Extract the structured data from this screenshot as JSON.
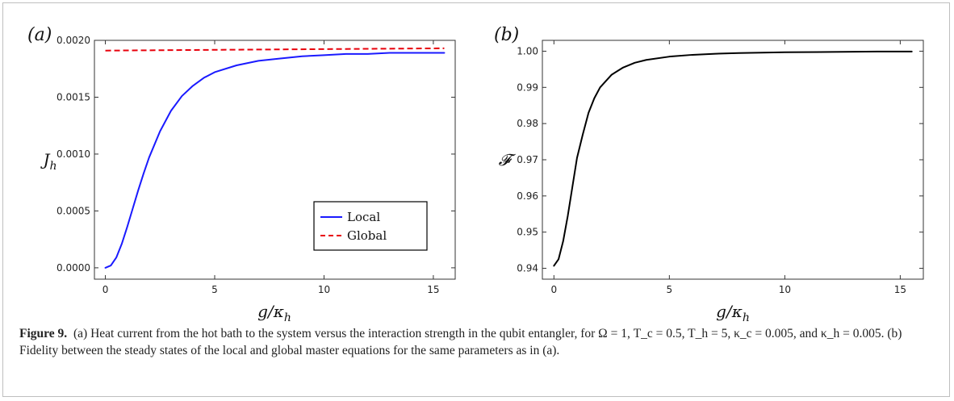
{
  "chart_data": [
    {
      "type": "line",
      "panel_label": "(a)",
      "xlabel": "g/κ_h",
      "ylabel": "J_h",
      "xlim": [
        -0.5,
        16
      ],
      "ylim": [
        -0.0001,
        0.002
      ],
      "x_ticks": [
        0,
        5,
        10,
        15
      ],
      "x_tick_labels": [
        "0",
        "5",
        "10",
        "15"
      ],
      "y_ticks": [
        0,
        0.0005,
        0.001,
        0.0015,
        0.002
      ],
      "y_tick_labels": [
        "0.0000",
        "0.0005",
        "0.0010",
        "0.0015",
        "0.0020"
      ],
      "legend": {
        "placement": "lower-right",
        "entries": [
          "Local",
          "Global"
        ]
      },
      "series": [
        {
          "name": "Local",
          "color": "#1a1aff",
          "style": "solid",
          "x": [
            0,
            0.25,
            0.5,
            0.75,
            1,
            1.25,
            1.5,
            1.75,
            2,
            2.5,
            3,
            3.5,
            4,
            4.5,
            5,
            6,
            7,
            8,
            9,
            10,
            11,
            12,
            13,
            14,
            15,
            15.5
          ],
          "y": [
            0,
            2e-05,
            9e-05,
            0.00021,
            0.00036,
            0.00052,
            0.00068,
            0.00083,
            0.00097,
            0.0012,
            0.00138,
            0.00151,
            0.0016,
            0.00167,
            0.00172,
            0.00178,
            0.00182,
            0.00184,
            0.00186,
            0.00187,
            0.00188,
            0.00188,
            0.00189,
            0.00189,
            0.00189,
            0.00189
          ]
        },
        {
          "name": "Global",
          "color": "#e8000b",
          "style": "dashed",
          "x": [
            0,
            15.5
          ],
          "y": [
            0.00191,
            0.00193
          ]
        }
      ]
    },
    {
      "type": "line",
      "panel_label": "(b)",
      "xlabel": "g/κ_h",
      "ylabel": "𝓕",
      "xlim": [
        -0.5,
        16
      ],
      "ylim": [
        0.937,
        1.003
      ],
      "x_ticks": [
        0,
        5,
        10,
        15
      ],
      "x_tick_labels": [
        "0",
        "5",
        "10",
        "15"
      ],
      "y_ticks": [
        0.94,
        0.95,
        0.96,
        0.97,
        0.98,
        0.99,
        1.0
      ],
      "y_tick_labels": [
        "0.94",
        "0.95",
        "0.96",
        "0.97",
        "0.98",
        "0.99",
        "1.00"
      ],
      "series": [
        {
          "color": "#000000",
          "style": "solid",
          "x": [
            0,
            0.2,
            0.4,
            0.6,
            0.8,
            1,
            1.25,
            1.5,
            1.75,
            2,
            2.5,
            3,
            3.5,
            4,
            5,
            6,
            7,
            8,
            10,
            12,
            14,
            15.5
          ],
          "y": [
            0.9407,
            0.9425,
            0.9475,
            0.9545,
            0.9625,
            0.9705,
            0.977,
            0.983,
            0.987,
            0.99,
            0.9935,
            0.9955,
            0.9968,
            0.9976,
            0.9985,
            0.999,
            0.9993,
            0.9995,
            0.9997,
            0.9998,
            0.9999,
            0.9999
          ]
        }
      ]
    }
  ],
  "caption": {
    "label": "Figure 9.",
    "text": "(a) Heat current from the hot bath to the system versus the interaction strength in the qubit entangler, for Ω = 1, T_c = 0.5, T_h = 5, κ_c = 0.005, and κ_h = 0.005. (b) Fidelity between the steady states of the local and global master equations for the same parameters as in (a)."
  }
}
